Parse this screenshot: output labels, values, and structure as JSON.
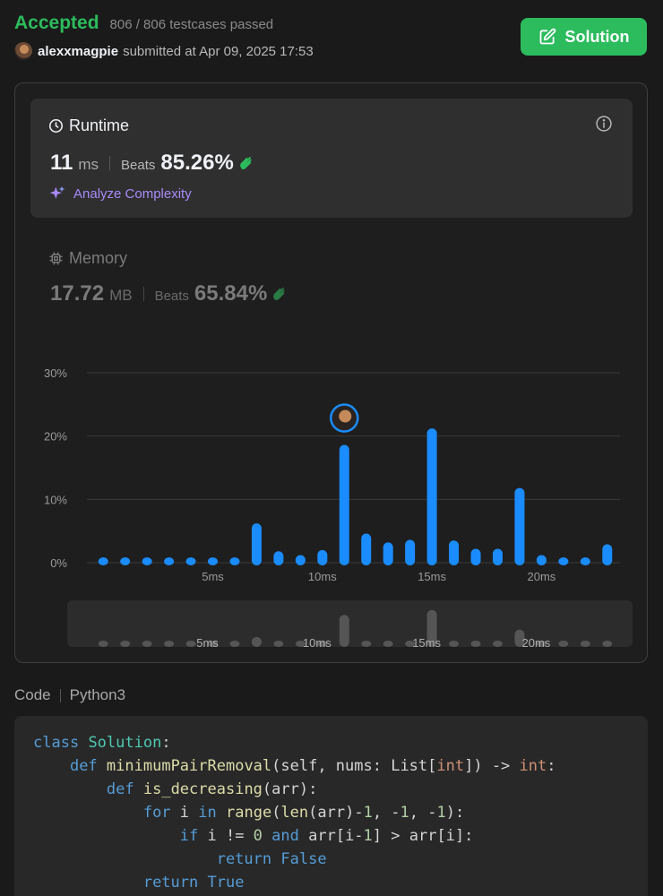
{
  "header": {
    "status": "Accepted",
    "testcases": "806 / 806 testcases passed",
    "username": "alexxmagpie",
    "submitted_text": "submitted at Apr 09, 2025 17:53",
    "solution_button": "Solution"
  },
  "runtime": {
    "title": "Runtime",
    "value": "11",
    "unit": "ms",
    "beats_label": "Beats",
    "beats_value": "85.26%",
    "analyze_label": "Analyze Complexity"
  },
  "memory": {
    "title": "Memory",
    "value": "17.72",
    "unit": "MB",
    "beats_label": "Beats",
    "beats_value": "65.84%"
  },
  "chart_data": {
    "type": "bar",
    "x": [
      1,
      2,
      3,
      4,
      5,
      6,
      7,
      8,
      9,
      10,
      11,
      12,
      13,
      14,
      15,
      16,
      17,
      18,
      19,
      20,
      21,
      22,
      23,
      24
    ],
    "values": [
      0.8,
      0.8,
      0.8,
      0.8,
      0.8,
      0.8,
      0.8,
      6.2,
      1.8,
      1.2,
      2,
      18.6,
      4.6,
      3.2,
      3.6,
      21.2,
      3.5,
      2.2,
      2.2,
      11.8,
      1.2,
      0.8,
      0.8,
      2.9
    ],
    "yticks": [
      "0%",
      "10%",
      "20%",
      "30%"
    ],
    "ylim": [
      0,
      30
    ],
    "xticks": [
      "5ms",
      "10ms",
      "15ms",
      "20ms"
    ],
    "xtick_values": [
      6,
      11,
      16,
      21
    ],
    "highlight_x": 12,
    "overview_values": [
      0.8,
      0.8,
      0.8,
      0.8,
      0.8,
      0.8,
      0.8,
      2,
      0.8,
      0.8,
      0.8,
      6.5,
      1.2,
      0.8,
      0.8,
      7.5,
      0.8,
      0.8,
      0.8,
      3.5,
      0.8,
      0.8,
      0.8,
      0.8
    ],
    "colors": {
      "bar": "#1a8cff",
      "overview_bar": "#555555",
      "grid": "#3a3a3a"
    }
  },
  "code": {
    "label": "Code",
    "language": "Python3",
    "lines": [
      [
        [
          "kw",
          "class"
        ],
        [
          "",
          "",
          " "
        ],
        [
          "cls",
          "Solution"
        ],
        [
          "",
          ":"
        ]
      ],
      [
        [
          "",
          "    "
        ],
        [
          "kw",
          "def"
        ],
        [
          "",
          " "
        ],
        [
          "fn",
          "minimumPairRemoval"
        ],
        [
          "",
          "(self, nums: List["
        ],
        [
          "ty",
          "int"
        ],
        [
          "",
          "]) -> "
        ],
        [
          "ty",
          "int"
        ],
        [
          "",
          ":"
        ]
      ],
      [
        [
          "",
          "        "
        ],
        [
          "kw",
          "def"
        ],
        [
          "",
          " "
        ],
        [
          "fn",
          "is_decreasing"
        ],
        [
          "",
          "(arr):"
        ]
      ],
      [
        [
          "",
          "            "
        ],
        [
          "kw",
          "for"
        ],
        [
          "",
          " i "
        ],
        [
          "kw",
          "in"
        ],
        [
          "",
          " "
        ],
        [
          "bi",
          "range"
        ],
        [
          "",
          "("
        ],
        [
          "bi",
          "len"
        ],
        [
          "",
          "(arr)-"
        ],
        [
          "num",
          "1"
        ],
        [
          "",
          ", -"
        ],
        [
          "num",
          "1"
        ],
        [
          "",
          ", -"
        ],
        [
          "num",
          "1"
        ],
        [
          "",
          "):"
        ]
      ],
      [
        [
          "",
          "                "
        ],
        [
          "kw",
          "if"
        ],
        [
          "",
          " i != "
        ],
        [
          "num",
          "0"
        ],
        [
          "",
          " "
        ],
        [
          "kw",
          "and"
        ],
        [
          "",
          " arr[i-"
        ],
        [
          "num",
          "1"
        ],
        [
          "",
          "] > arr[i]:"
        ]
      ],
      [
        [
          "",
          "                    "
        ],
        [
          "kw",
          "return"
        ],
        [
          "",
          " "
        ],
        [
          "kw",
          "False"
        ]
      ],
      [
        [
          "",
          "            "
        ],
        [
          "kw",
          "return"
        ],
        [
          "",
          " "
        ],
        [
          "kw",
          "True"
        ]
      ]
    ]
  }
}
